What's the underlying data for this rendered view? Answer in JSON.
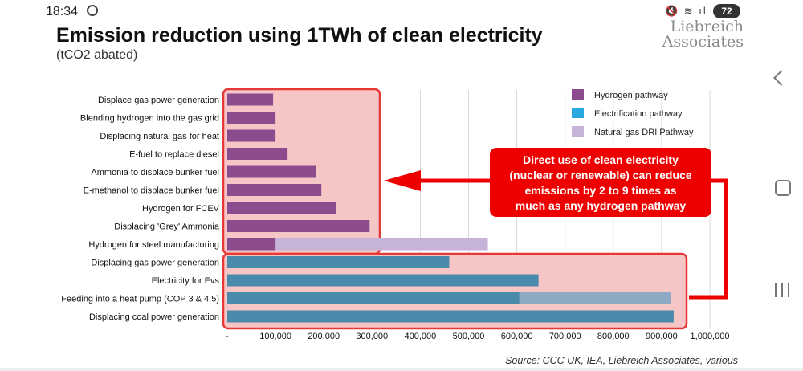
{
  "status": {
    "time": "18:34",
    "battery": "72"
  },
  "slide": {
    "title": "Emission reduction using 1TWh of clean electricity",
    "subtitle": "(tCO2 abated)",
    "brand_line1": "Liebreich",
    "brand_line2": "Associates",
    "source": "Source: CCC UK, IEA, Liebreich Associates, various"
  },
  "colors": {
    "hydrogen": "#8c4b8c",
    "electrification": "#4a8aaa",
    "dri": "#c7b3d8",
    "heat_pump_extra": "#8da9c4",
    "highlight_fill": "#f6c6c6",
    "highlight_stroke": "#e53935",
    "callout": "#ee0000"
  },
  "callout": {
    "lines": [
      "Direct use of clean electricity",
      "(nuclear or renewable) can reduce",
      "emissions by 2 to 9 times as",
      "much as any hydrogen pathway"
    ]
  },
  "chart_data": {
    "type": "bar",
    "orientation": "horizontal",
    "categories": [
      "Displace gas power generation",
      "Blending hydrogen into the gas grid",
      "Displacing natural gas for heat",
      "E-fuel to replace diesel",
      "Ammonia to displace bunker fuel",
      "E-methanol to displace bunker fuel",
      "Hydrogen for FCEV",
      "Displacing 'Grey' Ammonia",
      "Hydrogen for steel manufacturing",
      "Displacing gas power generation",
      "Electricity for Evs",
      "Feeding into a heat pump (COP 3 & 4.5)",
      "Displacing coal power generation"
    ],
    "series": [
      {
        "name": "Hydrogen pathway",
        "values": [
          95000,
          100000,
          100000,
          125000,
          183000,
          195000,
          225000,
          295000,
          100000,
          null,
          null,
          null,
          null
        ]
      },
      {
        "name": "Electrification pathway",
        "values": [
          null,
          null,
          null,
          null,
          null,
          null,
          null,
          null,
          null,
          460000,
          645000,
          605000,
          925000
        ]
      },
      {
        "name": "Natural gas DRI Pathway",
        "values": [
          null,
          null,
          null,
          null,
          null,
          null,
          null,
          null,
          540000,
          null,
          null,
          null,
          null
        ]
      }
    ],
    "heat_pump_upper_value": 920000,
    "x_ticks": [
      "-",
      "100,000",
      "200,000",
      "300,000",
      "400,000",
      "500,000",
      "600,000",
      "700,000",
      "800,000",
      "900,000",
      "1,000,000"
    ],
    "xlim": [
      0,
      1000000
    ],
    "legend": {
      "position": "top-right",
      "entries": [
        "Hydrogen pathway",
        "Electrification pathway",
        "Natural gas DRI Pathway"
      ]
    },
    "title": "Emission reduction using 1TWh of clean electricity",
    "xlabel": "",
    "ylabel": "",
    "grid": true
  }
}
